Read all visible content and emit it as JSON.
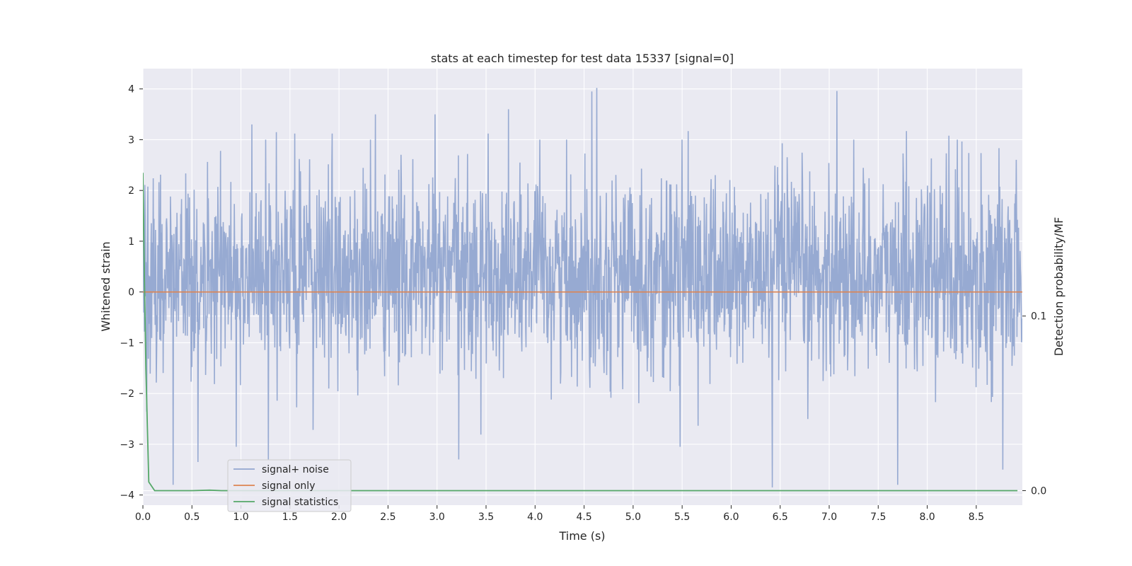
{
  "chart_data": {
    "type": "line",
    "title": "stats at each timestep for test data 15337 [signal=0]",
    "xlabel": "Time (s)",
    "ylabel": "Whitened strain",
    "ylabel_right": "Detection probability/MF",
    "xlim": [
      0.0,
      8.97
    ],
    "ylim": [
      -4.2,
      4.4
    ],
    "ylim_right": [
      -0.0083,
      0.2417
    ],
    "x_ticks": [
      "0.0",
      "0.5",
      "1.0",
      "1.5",
      "2.0",
      "2.5",
      "3.0",
      "3.5",
      "4.0",
      "4.5",
      "5.0",
      "5.5",
      "6.0",
      "6.5",
      "7.0",
      "7.5",
      "8.0",
      "8.5"
    ],
    "x_tick_values": [
      0.0,
      0.5,
      1.0,
      1.5,
      2.0,
      2.5,
      3.0,
      3.5,
      4.0,
      4.5,
      5.0,
      5.5,
      6.0,
      6.5,
      7.0,
      7.5,
      8.0,
      8.5
    ],
    "y_ticks": [
      "−4",
      "−3",
      "−2",
      "−1",
      "0",
      "1",
      "2",
      "3",
      "4"
    ],
    "y_tick_values": [
      -4,
      -3,
      -2,
      -1,
      0,
      1,
      2,
      3,
      4
    ],
    "y_right_ticks": [
      "0.0",
      "0.1"
    ],
    "y_right_tick_values": [
      0.0,
      0.1
    ],
    "grid": true,
    "legend_position": "lower-left",
    "series": [
      {
        "name": "signal+ noise",
        "axis": "left",
        "color": "#92a6d0",
        "description_stats": {
          "approx_range": [
            -3.85,
            4.02
          ],
          "typical_band": [
            -1.8,
            2.6
          ]
        },
        "peaks": [
          {
            "x": 1.11,
            "y": 3.3
          },
          {
            "x": 1.36,
            "y": 3.15
          },
          {
            "x": 1.55,
            "y": 3.12
          },
          {
            "x": 1.93,
            "y": 3.12
          },
          {
            "x": 2.37,
            "y": 3.5
          },
          {
            "x": 2.98,
            "y": 3.5
          },
          {
            "x": 3.52,
            "y": 3.12
          },
          {
            "x": 3.73,
            "y": 3.6
          },
          {
            "x": 4.58,
            "y": 3.95
          },
          {
            "x": 4.63,
            "y": 4.02
          },
          {
            "x": 5.56,
            "y": 3.17
          },
          {
            "x": 7.08,
            "y": 3.96
          },
          {
            "x": 7.79,
            "y": 3.17
          },
          {
            "x": 8.22,
            "y": 3.08
          }
        ],
        "troughs": [
          {
            "x": 0.31,
            "y": -3.8
          },
          {
            "x": 0.56,
            "y": -3.35
          },
          {
            "x": 0.95,
            "y": -3.05
          },
          {
            "x": 1.28,
            "y": -3.3
          },
          {
            "x": 3.22,
            "y": -3.3
          },
          {
            "x": 5.48,
            "y": -3.05
          },
          {
            "x": 6.42,
            "y": -3.85
          },
          {
            "x": 7.7,
            "y": -3.8
          },
          {
            "x": 8.77,
            "y": -3.5
          }
        ]
      },
      {
        "name": "signal only",
        "axis": "left",
        "color": "#dd8452",
        "x": [
          0.0,
          8.97
        ],
        "y": [
          0.0,
          0.0
        ]
      },
      {
        "name": "signal statistics",
        "axis": "right",
        "color": "#55a868",
        "x": [
          0.0,
          0.01,
          0.03,
          0.06,
          0.12,
          0.5,
          0.68,
          0.8,
          1.0,
          8.92
        ],
        "y": [
          0.182,
          0.14,
          0.07,
          0.005,
          0.0,
          0.0,
          0.0003,
          0.0,
          0.0,
          0.0
        ]
      }
    ]
  }
}
